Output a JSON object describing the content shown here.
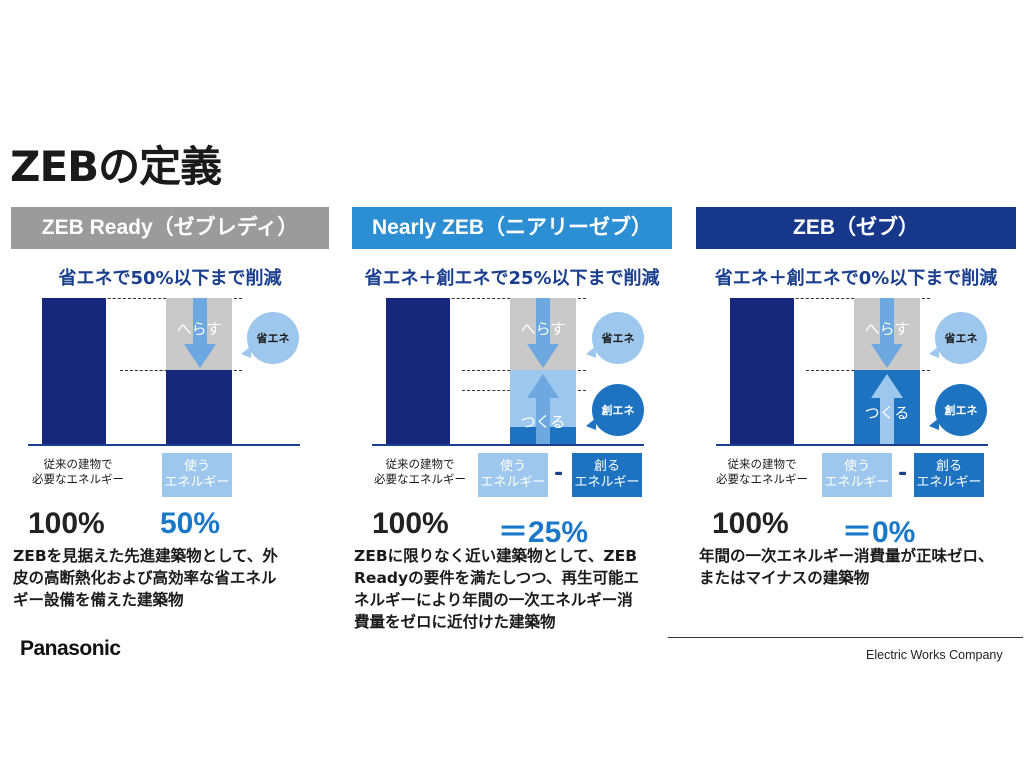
{
  "title": "ZEBの定義",
  "colors": {
    "gray_header": "#9b9b9b",
    "light_blue_header": "#2c8fd3",
    "dark_blue_header": "#16378a",
    "dark_bar": "#15287a",
    "gray_bar": "#c9c9c9",
    "arrow_blue": "#6ea8e0",
    "light_bar": "#9dc7ec",
    "mid_bar": "#1e73c0",
    "pct_dark": "#222222",
    "pct_blue": "#1b78c8"
  },
  "columns": [
    {
      "header": "ZEB Ready（ゼブレディ）",
      "subtitle": "省エネで50%以下まで削減",
      "reduce_label": "へらす",
      "bubble_save": "省エネ",
      "conventional_label": [
        "従来の建物で",
        "必要なエネルギー"
      ],
      "use_box": [
        "使う",
        "エネルギー"
      ],
      "pct_left": "100%",
      "pct_right": "50%",
      "desc": [
        "ZEBを見据えた先進建築物として、外",
        "皮の高断熱化および高効率な省エネル",
        "ギー設備を備えた建築物"
      ]
    },
    {
      "header": "Nearly ZEB（ニアリーゼブ）",
      "subtitle": "省エネ＋創エネで25%以下まで削減",
      "reduce_label": "へらす",
      "make_label": "つくる",
      "bubble_save": "省エネ",
      "bubble_create": "創エネ",
      "conventional_label": [
        "従来の建物で",
        "必要なエネルギー"
      ],
      "use_box": [
        "使う",
        "エネルギー"
      ],
      "make_box": [
        "創る",
        "エネルギー"
      ],
      "minus": "-",
      "pct_left": "100%",
      "pct_right": "＝25%",
      "desc": [
        "ZEBに限りなく近い建築物として、ZEB",
        "Readyの要件を満たしつつ、再生可能エ",
        "ネルギーにより年間の一次エネルギー消",
        "費量をゼロに近付けた建築物"
      ]
    },
    {
      "header": "ZEB（ゼブ）",
      "subtitle": "省エネ＋創エネで0%以下まで削減",
      "reduce_label": "へらす",
      "make_label": "つくる",
      "bubble_save": "省エネ",
      "bubble_create": "創エネ",
      "conventional_label": [
        "従来の建物で",
        "必要なエネルギー"
      ],
      "use_box": [
        "使う",
        "エネルギー"
      ],
      "make_box": [
        "創る",
        "エネルギー"
      ],
      "minus": "-",
      "pct_left": "100%",
      "pct_right": "＝0%",
      "desc": [
        "年間の一次エネルギー消費量が正味ゼロ、",
        "またはマイナスの建築物"
      ]
    }
  ],
  "brand": "Panasonic",
  "company": "Electric Works Company"
}
